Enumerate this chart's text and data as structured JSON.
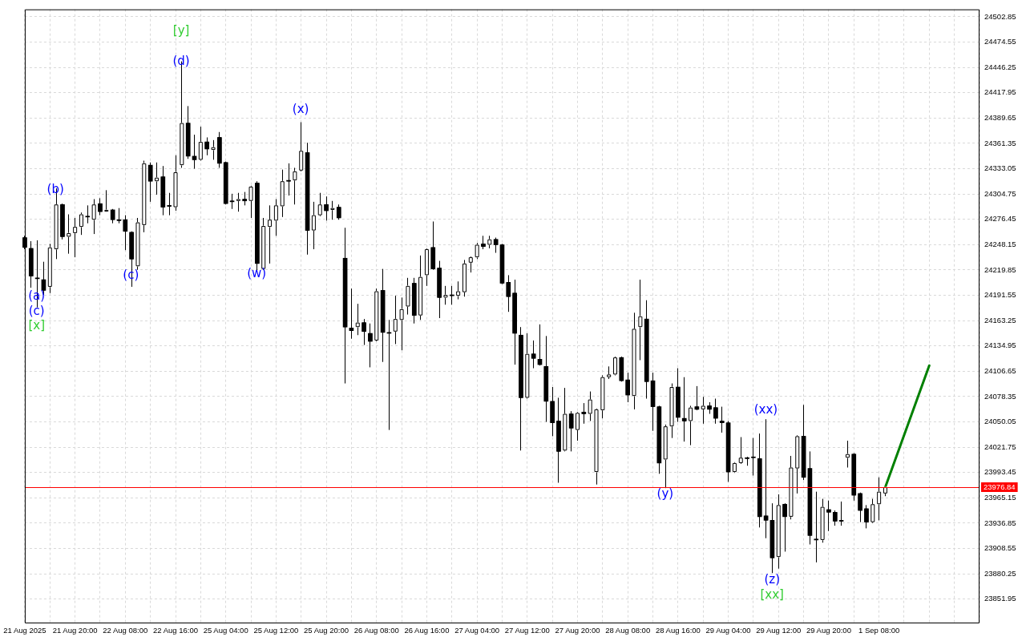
{
  "chart_data": {
    "type": "candlestick",
    "categories": [
      "21 Aug 2025",
      null,
      null,
      null,
      null,
      null,
      null,
      null,
      "21 Aug 20:00",
      null,
      null,
      null,
      null,
      null,
      null,
      null,
      "22 Aug 08:00",
      null,
      null,
      null,
      null,
      null,
      null,
      null,
      "22 Aug 16:00",
      null,
      null,
      null,
      null,
      null,
      null,
      null,
      "25 Aug 04:00",
      null,
      null,
      null,
      null,
      null,
      null,
      null,
      "25 Aug 12:00",
      null,
      null,
      null,
      null,
      null,
      null,
      null,
      "25 Aug 20:00",
      null,
      null,
      null,
      null,
      null,
      null,
      null,
      "26 Aug 08:00",
      null,
      null,
      null,
      null,
      null,
      null,
      null,
      "26 Aug 16:00",
      null,
      null,
      null,
      null,
      null,
      null,
      null,
      "27 Aug 04:00",
      null,
      null,
      null,
      null,
      null,
      null,
      null,
      "27 Aug 12:00",
      null,
      null,
      null,
      null,
      null,
      null,
      null,
      "27 Aug 20:00",
      null,
      null,
      null,
      null,
      null,
      null,
      null,
      "28 Aug 08:00",
      null,
      null,
      null,
      null,
      null,
      null,
      null,
      "28 Aug 16:00",
      null,
      null,
      null,
      null,
      null,
      null,
      null,
      "29 Aug 04:00",
      null,
      null,
      null,
      null,
      null,
      null,
      null,
      "29 Aug 12:00",
      null,
      null,
      null,
      null,
      null,
      null,
      null,
      "29 Aug 20:00",
      null,
      null,
      null,
      null,
      null,
      null,
      null,
      "1 Sep 08:00",
      null,
      null,
      null,
      null,
      null,
      null,
      null,
      null,
      null,
      null,
      null,
      null,
      null,
      null,
      null,
      null
    ],
    "ohlc": [
      [
        24256,
        24258,
        24243,
        24245
      ],
      [
        24244,
        24252,
        24200,
        24213
      ],
      [
        24210,
        24253,
        24178,
        24210
      ],
      [
        24209,
        24229,
        24192,
        24197
      ],
      [
        24201,
        24249,
        24194,
        24245
      ],
      [
        24243,
        24311,
        24232,
        24293
      ],
      [
        24293,
        24294,
        24254,
        24257
      ],
      [
        24257,
        24282,
        24238,
        24261
      ],
      [
        24261,
        24278,
        24234,
        24268
      ],
      [
        24268,
        24284,
        24259,
        24282
      ],
      [
        24279,
        24292,
        24272,
        24279
      ],
      [
        24276,
        24299,
        24260,
        24293
      ],
      [
        24294,
        24300,
        24281,
        24285
      ],
      [
        24285,
        24309,
        24285,
        24287
      ],
      [
        24287,
        24288,
        24272,
        24276
      ],
      [
        24276,
        24289,
        24272,
        24275
      ],
      [
        24276,
        24281,
        24242,
        24263
      ],
      [
        24262,
        24263,
        24201,
        24232
      ],
      [
        24224,
        24278,
        24220,
        24273
      ],
      [
        24270,
        24342,
        24262,
        24339
      ],
      [
        24337,
        24340,
        24296,
        24319
      ],
      [
        24319,
        24340,
        24304,
        24323
      ],
      [
        24324,
        24336,
        24281,
        24290
      ],
      [
        24291,
        24306,
        24281,
        24291
      ],
      [
        24290,
        24348,
        24286,
        24329
      ],
      [
        24337,
        24453,
        24334,
        24384
      ],
      [
        24384,
        24403,
        24344,
        24347
      ],
      [
        24347,
        24371,
        24333,
        24343
      ],
      [
        24343,
        24380,
        24342,
        24363
      ],
      [
        24363,
        24368,
        24348,
        24355
      ],
      [
        24354,
        24365,
        24343,
        24357
      ],
      [
        24368,
        24374,
        24334,
        24339
      ],
      [
        24340,
        24341,
        24293,
        24294
      ],
      [
        24297,
        24305,
        24288,
        24296
      ],
      [
        24297,
        24306,
        24285,
        24299
      ],
      [
        24299,
        24307,
        24292,
        24297
      ],
      [
        24297,
        24314,
        24278,
        24313
      ],
      [
        24317,
        24319,
        24219,
        24227
      ],
      [
        24221,
        24278,
        24220,
        24269
      ],
      [
        24268,
        24292,
        24227,
        24276
      ],
      [
        24275,
        24299,
        24258,
        24292
      ],
      [
        24291,
        24332,
        24279,
        24319
      ],
      [
        24320,
        24339,
        24303,
        24319
      ],
      [
        24320,
        24334,
        24293,
        24330
      ],
      [
        24331,
        24385,
        24330,
        24353
      ],
      [
        24351,
        24362,
        24237,
        24264
      ],
      [
        24264,
        24296,
        24243,
        24281
      ],
      [
        24281,
        24306,
        24280,
        24293
      ],
      [
        24293,
        24302,
        24275,
        24286
      ],
      [
        24287,
        24297,
        24276,
        24289
      ],
      [
        24290,
        24293,
        24276,
        24278
      ],
      [
        24233,
        24267,
        24093,
        24156
      ],
      [
        24155,
        24199,
        24143,
        24152
      ],
      [
        24156,
        24182,
        24147,
        24161
      ],
      [
        24161,
        24165,
        24136,
        24151
      ],
      [
        24149,
        24160,
        24111,
        24140
      ],
      [
        24141,
        24199,
        24140,
        24196
      ],
      [
        24197,
        24221,
        24117,
        24150
      ],
      [
        24150,
        24164,
        24041,
        24149
      ],
      [
        24151,
        24191,
        24137,
        24165
      ],
      [
        24164,
        24189,
        24130,
        24176
      ],
      [
        24179,
        24211,
        24170,
        24202
      ],
      [
        24205,
        24211,
        24160,
        24169
      ],
      [
        24169,
        24236,
        24164,
        24212
      ],
      [
        24214,
        24244,
        24202,
        24243
      ],
      [
        24245,
        24274,
        24220,
        24221
      ],
      [
        24222,
        24230,
        24166,
        24189
      ],
      [
        24189,
        24202,
        24181,
        24192
      ],
      [
        24192,
        24202,
        24181,
        24191
      ],
      [
        24191,
        24207,
        24187,
        24196
      ],
      [
        24195,
        24231,
        24190,
        24227
      ],
      [
        24228,
        24235,
        24217,
        24234
      ],
      [
        24234,
        24250,
        24232,
        24248
      ],
      [
        24249,
        24258,
        24243,
        24246
      ],
      [
        24248,
        24258,
        24244,
        24254
      ],
      [
        24254,
        24256,
        24239,
        24248
      ],
      [
        24248,
        24249,
        24204,
        24205
      ],
      [
        24206,
        24214,
        24173,
        24190
      ],
      [
        24194,
        24209,
        24114,
        24149
      ],
      [
        24147,
        24156,
        24018,
        24077
      ],
      [
        24077,
        24149,
        24076,
        24126
      ],
      [
        24126,
        24141,
        24110,
        24121
      ],
      [
        24120,
        24159,
        24113,
        24114
      ],
      [
        24112,
        24146,
        24050,
        24073
      ],
      [
        24073,
        24089,
        24034,
        24049
      ],
      [
        24051,
        24077,
        23982,
        24017
      ],
      [
        24018,
        24088,
        24017,
        24059
      ],
      [
        24059,
        24062,
        24017,
        24043
      ],
      [
        24041,
        24061,
        24029,
        24060
      ],
      [
        24061,
        24071,
        24048,
        24059
      ],
      [
        24059,
        24084,
        24051,
        24075
      ],
      [
        23994,
        24065,
        23980,
        24064
      ],
      [
        24063,
        24102,
        24054,
        24100
      ],
      [
        24100,
        24112,
        24098,
        24103
      ],
      [
        24103,
        24123,
        24102,
        24122
      ],
      [
        24122,
        24123,
        24095,
        24096
      ],
      [
        24097,
        24105,
        24072,
        24080
      ],
      [
        24079,
        24172,
        24064,
        24154
      ],
      [
        24156,
        24209,
        24119,
        24168
      ],
      [
        24165,
        24186,
        24076,
        24095
      ],
      [
        24096,
        24105,
        24040,
        24067
      ],
      [
        24067,
        24068,
        23992,
        24004
      ],
      [
        24008,
        24047,
        23976,
        24045
      ],
      [
        24045,
        24093,
        24032,
        24089
      ],
      [
        24089,
        24110,
        24050,
        24055
      ],
      [
        24054,
        24100,
        24028,
        24051
      ],
      [
        24051,
        24068,
        24024,
        24066
      ],
      [
        24067,
        24090,
        24063,
        24064
      ],
      [
        24064,
        24078,
        24048,
        24068
      ],
      [
        24068,
        24072,
        24059,
        24064
      ],
      [
        24066,
        24076,
        24048,
        24054
      ],
      [
        24051,
        24067,
        24038,
        24049
      ],
      [
        24049,
        24051,
        23983,
        23994
      ],
      [
        23994,
        24005,
        23993,
        24004
      ],
      [
        24004,
        24033,
        24003,
        24010
      ],
      [
        24010,
        24011,
        24001,
        24009
      ],
      [
        24010,
        24032,
        23990,
        24010
      ],
      [
        24009,
        24037,
        23932,
        23944
      ],
      [
        23945,
        24053,
        23920,
        23940
      ],
      [
        23940,
        23959,
        23881,
        23898
      ],
      [
        23899,
        23969,
        23886,
        23957
      ],
      [
        23958,
        23959,
        23905,
        23944
      ],
      [
        23944,
        24012,
        23941,
        23999
      ],
      [
        23998,
        24035,
        23970,
        24034
      ],
      [
        24034,
        24069,
        23985,
        23988
      ],
      [
        23998,
        24017,
        23913,
        23923
      ],
      [
        23919,
        23972,
        23893,
        23918
      ],
      [
        23918,
        23964,
        23915,
        23955
      ],
      [
        23952,
        23962,
        23928,
        23949
      ],
      [
        23949,
        23951,
        23934,
        23939
      ],
      [
        23939,
        23961,
        23934,
        23939
      ],
      [
        24010,
        24029,
        23999,
        24014
      ],
      [
        24014,
        24015,
        23962,
        23968
      ],
      [
        23970,
        23971,
        23938,
        23951
      ],
      [
        23953,
        23957,
        23931,
        23938
      ],
      [
        23938,
        23964,
        23937,
        23958
      ],
      [
        23958,
        23988,
        23940,
        23972
      ],
      [
        23970,
        23977,
        23967,
        23977
      ],
      null,
      null,
      null,
      null,
      null,
      null,
      null,
      null,
      null,
      null,
      null,
      null,
      null,
      null,
      null
    ],
    "colors": [
      "#000000",
      "#000000",
      "#000000",
      "#000000",
      "#ffffff",
      "#ffffff",
      "#000000",
      "#ffffff",
      "#ffffff",
      "#ffffff",
      "#000000",
      "#ffffff",
      "#000000",
      "#ffffff",
      "#000000",
      "#000000",
      "#000000",
      "#000000",
      "#ffffff",
      "#ffffff",
      "#000000",
      "#ffffff",
      "#000000",
      "#000000",
      "#ffffff",
      "#ffffff",
      "#000000",
      "#000000",
      "#ffffff",
      "#000000",
      "#ffffff",
      "#000000",
      "#000000",
      "#000000",
      "#ffffff",
      "#000000",
      "#ffffff",
      "#000000",
      "#ffffff",
      "#ffffff",
      "#ffffff",
      "#ffffff",
      "#000000",
      "#ffffff",
      "#ffffff",
      "#000000",
      "#ffffff",
      "#ffffff",
      "#000000",
      "#ffffff",
      "#000000",
      "#000000",
      "#000000",
      "#ffffff",
      "#000000",
      "#000000",
      "#ffffff",
      "#000000",
      "#000000",
      "#ffffff",
      "#ffffff",
      "#ffffff",
      "#000000",
      "#ffffff",
      "#ffffff",
      "#000000",
      "#000000",
      "#ffffff",
      "#000000",
      "#ffffff",
      "#ffffff",
      "#ffffff",
      "#ffffff",
      "#000000",
      "#ffffff",
      "#000000",
      "#000000",
      "#000000",
      "#000000",
      "#000000",
      "#ffffff",
      "#000000",
      "#000000",
      "#000000",
      "#000000",
      "#000000",
      "#ffffff",
      "#000000",
      "#ffffff",
      "#000000",
      "#ffffff",
      "#ffffff",
      "#ffffff",
      "#ffffff",
      "#ffffff",
      "#000000",
      "#000000",
      "#ffffff",
      "#ffffff",
      "#000000",
      "#000000",
      "#000000",
      "#ffffff",
      "#ffffff",
      "#000000",
      "#000000",
      "#ffffff",
      "#000000",
      "#ffffff",
      "#000000",
      "#000000",
      "#000000",
      "#000000",
      "#ffffff",
      "#ffffff",
      "#000000",
      "#000000",
      "#000000",
      "#000000",
      "#000000",
      "#ffffff",
      "#000000",
      "#ffffff",
      "#ffffff",
      "#000000",
      "#000000",
      "#000000",
      "#ffffff",
      "#000000",
      "#000000",
      "#000000",
      "#ffffff",
      "#000000",
      "#000000",
      "#000000",
      "#ffffff",
      "#ffffff",
      "#ffffff",
      null,
      null,
      null,
      null,
      null,
      null,
      null,
      null,
      null,
      null,
      null,
      null,
      null,
      null,
      null
    ],
    "series": [
      {
        "type": "line",
        "color": "#008000",
        "values": [
          null,
          null,
          null,
          null,
          null,
          null,
          null,
          null,
          null,
          null,
          null,
          null,
          null,
          null,
          null,
          null,
          null,
          null,
          null,
          null,
          null,
          null,
          null,
          null,
          null,
          null,
          null,
          null,
          null,
          null,
          null,
          null,
          null,
          null,
          null,
          null,
          null,
          null,
          null,
          null,
          null,
          null,
          null,
          null,
          null,
          null,
          null,
          null,
          null,
          null,
          null,
          null,
          null,
          null,
          null,
          null,
          null,
          null,
          null,
          null,
          null,
          null,
          null,
          null,
          null,
          null,
          null,
          null,
          null,
          null,
          null,
          null,
          null,
          null,
          null,
          null,
          null,
          null,
          null,
          null,
          null,
          null,
          null,
          null,
          null,
          null,
          null,
          null,
          null,
          null,
          null,
          null,
          null,
          null,
          null,
          null,
          null,
          null,
          null,
          null,
          null,
          null,
          null,
          null,
          null,
          null,
          null,
          null,
          null,
          null,
          null,
          null,
          null,
          null,
          null,
          null,
          null,
          null,
          null,
          null,
          null,
          null,
          null,
          null,
          null,
          null,
          null,
          null,
          null,
          null,
          null,
          null,
          null,
          null,
          null,
          null,
          null,
          23977,
          null,
          null,
          null,
          null,
          null,
          null,
          24113,
          null,
          null,
          null,
          null,
          null,
          null,
          null,
          null
        ]
      }
    ],
    "ylim": [
      23824.8,
      24511.1
    ],
    "yticks": [
      23851.95,
      23880.25,
      23908.55,
      23936.85,
      23965.15,
      23993.45,
      24021.75,
      24050.05,
      24078.35,
      24106.65,
      24134.95,
      24163.25,
      24191.55,
      24219.85,
      24248.15,
      24276.45,
      24304.75,
      24333.05,
      24361.35,
      24389.65,
      24417.95,
      24446.25,
      24474.55,
      24502.85
    ],
    "grid": true,
    "ref_lines": [
      {
        "axis": "y",
        "value": 23976.84,
        "label": "23976.84",
        "color": "#ff0000"
      }
    ],
    "annotations": [
      "(a)",
      "(c)",
      "[x]",
      "(b)",
      "(c)",
      "(d)",
      "[y]",
      "(w)",
      "(x)",
      "(y)",
      "(xx)",
      "(z)",
      "[xx]"
    ]
  }
}
